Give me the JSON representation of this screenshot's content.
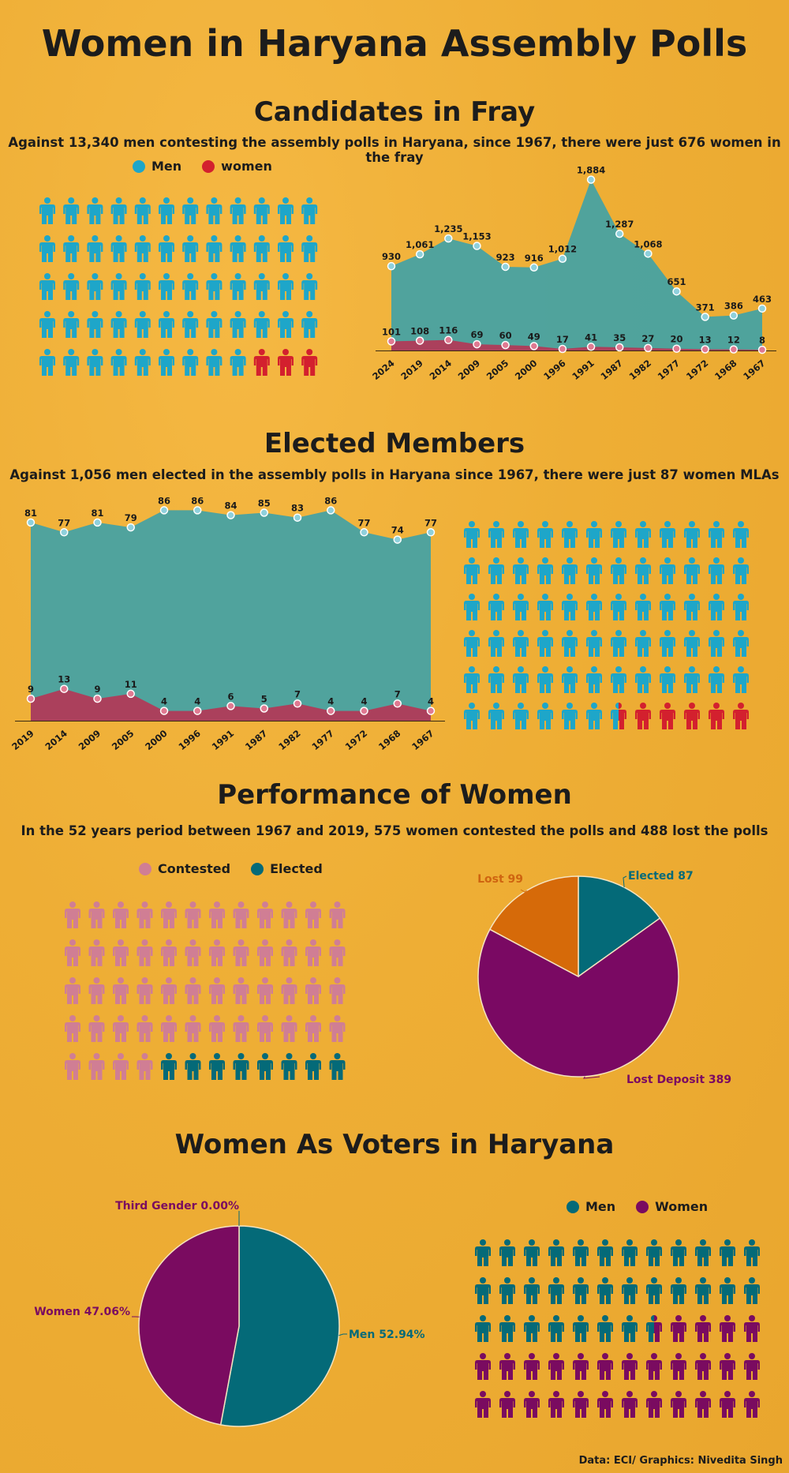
{
  "title": "Women in Haryana Assembly Polls",
  "colors": {
    "men_blue": "#1ea6c9",
    "women_red": "#d3202e",
    "teal_area": "#47a2a2",
    "red_area": "#b03b58",
    "contested_pink": "#d07e94",
    "elected_teal": "#046a78",
    "lost_orange": "#d66a09",
    "deposit_purple": "#7a0963",
    "women_purple": "#7a0b60"
  },
  "icons": {
    "person": "person-icon"
  },
  "sections": {
    "candidates": {
      "heading": "Candidates in Fray",
      "subtitle": "Against 13,340 men contesting the assembly polls in Haryana, since 1967, there were just 676 women in the fray",
      "legend": [
        "Men",
        "women"
      ]
    },
    "elected": {
      "heading": "Elected Members",
      "subtitle": "Against 1,056 men elected in the assembly polls in Haryana since 1967, there were just 87 women MLAs"
    },
    "performance": {
      "heading": "Performance of Women",
      "subtitle": "In the 52 years period between 1967 and 2019, 575 women contested the polls and 488 lost the polls",
      "legend": [
        "Contested",
        "Elected"
      ]
    },
    "voters": {
      "heading": "Women As Voters in Haryana",
      "legend": [
        "Men",
        "Women"
      ]
    }
  },
  "credit": "Data: ECI/ Graphics: Nivedita Singh",
  "chart_data": [
    {
      "id": "candidates-area",
      "type": "area",
      "x": [
        "2024",
        "2019",
        "2014",
        "2009",
        "2005",
        "2000",
        "1996",
        "1991",
        "1987",
        "1982",
        "1977",
        "1972",
        "1968",
        "1967"
      ],
      "series": [
        {
          "name": "Men",
          "values": [
            930,
            1061,
            1235,
            1153,
            923,
            916,
            1012,
            1884,
            1287,
            1068,
            651,
            371,
            386,
            463
          ],
          "labels": [
            "930",
            "1,061",
            "1,235",
            "1,153",
            "923",
            "916",
            "1,012",
            "1,884",
            "1,287",
            "1,068",
            "651",
            "371",
            "386",
            "463"
          ]
        },
        {
          "name": "women",
          "values": [
            101,
            108,
            116,
            69,
            60,
            49,
            17,
            41,
            35,
            27,
            20,
            13,
            12,
            8
          ],
          "labels": [
            "101",
            "108",
            "116",
            "69",
            "60",
            "49",
            "17",
            "41",
            "35",
            "27",
            "20",
            "13",
            "12",
            "8"
          ]
        }
      ],
      "ylim": [
        0,
        1950
      ]
    },
    {
      "id": "candidates-pictogram",
      "type": "pictogram",
      "total": 60,
      "men": 57,
      "women": 3
    },
    {
      "id": "elected-area",
      "type": "area",
      "x": [
        "2019",
        "2014",
        "2009",
        "2005",
        "2000",
        "1996",
        "1991",
        "1987",
        "1982",
        "1977",
        "1972",
        "1968",
        "1967"
      ],
      "series": [
        {
          "name": "Men",
          "values": [
            81,
            77,
            81,
            79,
            86,
            86,
            84,
            85,
            83,
            86,
            77,
            74,
            77
          ],
          "labels": [
            "81",
            "77",
            "81",
            "79",
            "86",
            "86",
            "84",
            "85",
            "83",
            "86",
            "77",
            "74",
            "77"
          ]
        },
        {
          "name": "Women",
          "values": [
            9,
            13,
            9,
            11,
            4,
            4,
            6,
            5,
            7,
            4,
            4,
            7,
            4
          ],
          "labels": [
            "9",
            "13",
            "9",
            "11",
            "4",
            "4",
            "6",
            "5",
            "7",
            "4",
            "4",
            "7",
            "4"
          ]
        }
      ],
      "ylim": [
        0,
        90
      ]
    },
    {
      "id": "elected-pictogram",
      "type": "pictogram",
      "total": 72,
      "men": 66.5,
      "women": 5.5
    },
    {
      "id": "performance-pictogram",
      "type": "pictogram",
      "total": 60,
      "contested": 52,
      "elected": 8
    },
    {
      "id": "performance-pie",
      "type": "pie",
      "slices": [
        {
          "label": "Elected 87",
          "value": 87
        },
        {
          "label": "Lost Deposit 389",
          "value": 389
        },
        {
          "label": "Lost 99",
          "value": 99
        }
      ]
    },
    {
      "id": "voters-pie",
      "type": "pie",
      "slices": [
        {
          "label": "Men 52.94%",
          "value": 52.94
        },
        {
          "label": "Women 47.06%",
          "value": 47.06
        },
        {
          "label": "Third Gender 0.00%",
          "value": 0.0
        }
      ]
    },
    {
      "id": "voters-pictogram",
      "type": "pictogram",
      "total": 60,
      "men": 31.5,
      "women": 28.5
    }
  ]
}
